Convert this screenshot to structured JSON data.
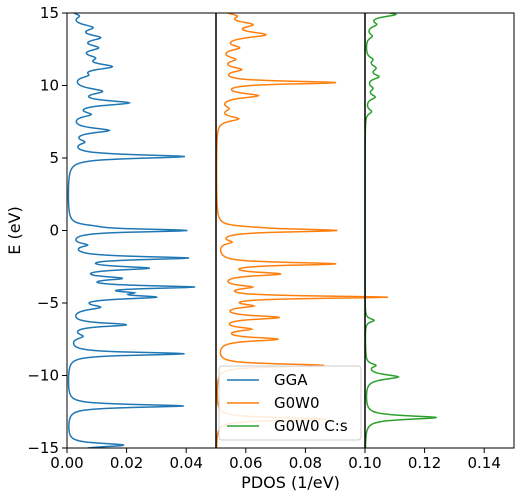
{
  "chart_data": {
    "type": "line",
    "xlabel": "PDOS (1/eV)",
    "ylabel": "E (eV)",
    "xlim": [
      0.0,
      0.15
    ],
    "ylim": [
      -15,
      15
    ],
    "xticks": [
      "0.00",
      "0.02",
      "0.04",
      "0.06",
      "0.08",
      "0.10",
      "0.12",
      "0.14"
    ],
    "yticks": [
      "−15",
      "−10",
      "−5",
      "0",
      "5",
      "10",
      "15"
    ],
    "xtick_values": [
      0.0,
      0.02,
      0.04,
      0.06,
      0.08,
      0.1,
      0.12,
      0.14
    ],
    "ytick_values": [
      -15,
      -10,
      -5,
      0,
      5,
      10,
      15
    ],
    "legend_position": "bottom-center",
    "offset_lines": [
      0.05,
      0.1
    ],
    "series": [
      {
        "name": "GGA",
        "color": "#1f77b4",
        "baseline": 0.0,
        "peaks": [
          {
            "E": 14.8,
            "h": 0.003,
            "w": 0.2
          },
          {
            "E": 14.0,
            "h": 0.007,
            "w": 0.25
          },
          {
            "E": 13.3,
            "h": 0.009,
            "w": 0.25
          },
          {
            "E": 12.6,
            "h": 0.008,
            "w": 0.25
          },
          {
            "E": 11.9,
            "h": 0.006,
            "w": 0.25
          },
          {
            "E": 11.3,
            "h": 0.013,
            "w": 0.25
          },
          {
            "E": 10.7,
            "h": 0.004,
            "w": 0.2
          },
          {
            "E": 9.6,
            "h": 0.01,
            "w": 0.25
          },
          {
            "E": 8.8,
            "h": 0.019,
            "w": 0.2
          },
          {
            "E": 8.0,
            "h": 0.006,
            "w": 0.2
          },
          {
            "E": 6.9,
            "h": 0.013,
            "w": 0.2
          },
          {
            "E": 6.1,
            "h": 0.004,
            "w": 0.2
          },
          {
            "E": 5.1,
            "h": 0.039,
            "w": 0.15
          },
          {
            "E": 0.3,
            "h": 0.004,
            "w": 0.15
          },
          {
            "E": 0.0,
            "h": 0.039,
            "w": 0.12
          },
          {
            "E": -1.0,
            "h": 0.005,
            "w": 0.15
          },
          {
            "E": -1.9,
            "h": 0.039,
            "w": 0.13
          },
          {
            "E": -2.6,
            "h": 0.025,
            "w": 0.15
          },
          {
            "E": -3.3,
            "h": 0.015,
            "w": 0.15
          },
          {
            "E": -3.9,
            "h": 0.039,
            "w": 0.12
          },
          {
            "E": -4.3,
            "h": 0.013,
            "w": 0.12
          },
          {
            "E": -4.6,
            "h": 0.026,
            "w": 0.15
          },
          {
            "E": -5.3,
            "h": 0.009,
            "w": 0.2
          },
          {
            "E": -6.5,
            "h": 0.019,
            "w": 0.15
          },
          {
            "E": -7.3,
            "h": 0.004,
            "w": 0.2
          },
          {
            "E": -8.5,
            "h": 0.039,
            "w": 0.12
          },
          {
            "E": -12.1,
            "h": 0.039,
            "w": 0.12
          },
          {
            "E": -14.8,
            "h": 0.019,
            "w": 0.15
          }
        ]
      },
      {
        "name": "G0W0",
        "color": "#ff7f0e",
        "baseline": 0.05,
        "peaks": [
          {
            "E": 14.8,
            "h": 0.005,
            "w": 0.2
          },
          {
            "E": 14.2,
            "h": 0.01,
            "w": 0.25
          },
          {
            "E": 13.5,
            "h": 0.015,
            "w": 0.25
          },
          {
            "E": 12.6,
            "h": 0.006,
            "w": 0.2
          },
          {
            "E": 11.8,
            "h": 0.005,
            "w": 0.2
          },
          {
            "E": 11.1,
            "h": 0.007,
            "w": 0.2
          },
          {
            "E": 10.2,
            "h": 0.039,
            "w": 0.12
          },
          {
            "E": 9.3,
            "h": 0.013,
            "w": 0.2
          },
          {
            "E": 8.4,
            "h": 0.003,
            "w": 0.2
          },
          {
            "E": 7.7,
            "h": 0.007,
            "w": 0.2
          },
          {
            "E": 0.2,
            "h": 0.005,
            "w": 0.12
          },
          {
            "E": 0.0,
            "h": 0.039,
            "w": 0.12
          },
          {
            "E": -0.8,
            "h": 0.004,
            "w": 0.15
          },
          {
            "E": -2.3,
            "h": 0.039,
            "w": 0.12
          },
          {
            "E": -3.0,
            "h": 0.02,
            "w": 0.15
          },
          {
            "E": -3.9,
            "h": 0.01,
            "w": 0.15
          },
          {
            "E": -4.6,
            "h": 0.056,
            "w": 0.1
          },
          {
            "E": -5.2,
            "h": 0.01,
            "w": 0.15
          },
          {
            "E": -6.0,
            "h": 0.02,
            "w": 0.15
          },
          {
            "E": -6.8,
            "h": 0.01,
            "w": 0.15
          },
          {
            "E": -7.5,
            "h": 0.02,
            "w": 0.15
          },
          {
            "E": -9.3,
            "h": 0.036,
            "w": 0.12
          },
          {
            "E": -13.0,
            "h": 0.037,
            "w": 0.12
          }
        ]
      },
      {
        "name": "G0W0 C:s",
        "color": "#2ca02c",
        "baseline": 0.1,
        "peaks": [
          {
            "E": 14.9,
            "h": 0.01,
            "w": 0.2
          },
          {
            "E": 14.2,
            "h": 0.003,
            "w": 0.2
          },
          {
            "E": 13.4,
            "h": 0.002,
            "w": 0.2
          },
          {
            "E": 11.8,
            "h": 0.002,
            "w": 0.2
          },
          {
            "E": 11.2,
            "h": 0.003,
            "w": 0.25
          },
          {
            "E": 10.6,
            "h": 0.004,
            "w": 0.2
          },
          {
            "E": 9.8,
            "h": 0.002,
            "w": 0.2
          },
          {
            "E": 9.2,
            "h": 0.003,
            "w": 0.2
          },
          {
            "E": 8.2,
            "h": 0.002,
            "w": 0.2
          },
          {
            "E": -6.2,
            "h": 0.003,
            "w": 0.15
          },
          {
            "E": -9.3,
            "h": 0.003,
            "w": 0.15
          },
          {
            "E": -10.1,
            "h": 0.011,
            "w": 0.2
          },
          {
            "E": -12.9,
            "h": 0.024,
            "w": 0.15
          }
        ]
      }
    ]
  }
}
